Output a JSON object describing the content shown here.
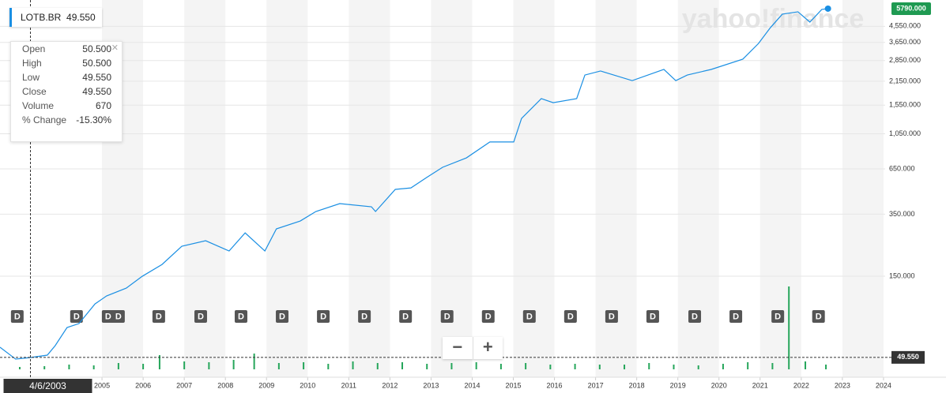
{
  "chart_data": {
    "type": "line",
    "ticker": "LOTB.BR",
    "ticker_price": "49.550",
    "watermark": "yahoo!finance",
    "zoom_buttons": [
      "−",
      "+"
    ],
    "log_scale": true,
    "grid": true,
    "x": [
      2002.52,
      2002.9,
      2003.25,
      2003.67,
      2003.86,
      2004.15,
      2004.44,
      2004.83,
      2005.11,
      2005.59,
      2005.98,
      2006.46,
      2006.94,
      2007.52,
      2008.09,
      2008.48,
      2008.96,
      2009.24,
      2009.82,
      2010.2,
      2010.78,
      2011.55,
      2011.65,
      2012.13,
      2012.51,
      2012.89,
      2013.28,
      2013.86,
      2014.43,
      2015.01,
      2015.2,
      2015.68,
      2015.97,
      2016.54,
      2016.74,
      2017.12,
      2017.89,
      2018.66,
      2018.95,
      2019.23,
      2019.81,
      2020.58,
      2020.96,
      2021.25,
      2021.54,
      2021.92,
      2022.21,
      2022.5,
      2022.65
    ],
    "series": [
      {
        "name": "LOTB.BR",
        "color": "#1a8fe3",
        "values": [
          56.9,
          48.4,
          49.4,
          51.1,
          58.1,
          74.5,
          78.6,
          102.8,
          114.6,
          127.6,
          150,
          176.2,
          225.9,
          243.6,
          211.7,
          271.1,
          211.7,
          286.4,
          319,
          363,
          404.4,
          387.3,
          363,
          491,
          501,
          577,
          664,
          755,
          938,
          938,
          1294,
          1695,
          1604,
          1695,
          2339,
          2472,
          2168,
          2525,
          2168,
          2339,
          2525,
          2905,
          3598,
          4467,
          5370,
          5546,
          4819,
          5728,
          5790
        ]
      }
    ],
    "xlim": [
      2002.52,
      2024.04
    ],
    "xticks": [
      2005,
      2006,
      2007,
      2008,
      2009,
      2010,
      2011,
      2012,
      2013,
      2014,
      2015,
      2016,
      2017,
      2018,
      2019,
      2020,
      2021,
      2022,
      2023,
      2024
    ],
    "ylim": [
      41.2,
      6516
    ],
    "yticks": [
      {
        "value": 150,
        "label": "150.000"
      },
      {
        "value": 350,
        "label": "350.000"
      },
      {
        "value": 650,
        "label": "650.000"
      },
      {
        "value": 1050,
        "label": "1,050.000"
      },
      {
        "value": 1550,
        "label": "1,550.000"
      },
      {
        "value": 2150,
        "label": "2,150.000"
      },
      {
        "value": 2850,
        "label": "2,850.000"
      },
      {
        "value": 3650,
        "label": "3,650.000"
      },
      {
        "value": 4550,
        "label": "4,550.000"
      }
    ],
    "last_price": {
      "value": 5790,
      "label": "5790.000",
      "color": "#1f9a52"
    },
    "crosshair": {
      "x": 2003.26,
      "date_label": "4/6/2003",
      "value": 49.55,
      "value_label": "49.550"
    },
    "tooltip": [
      {
        "label": "Open",
        "value": "50.500"
      },
      {
        "label": "High",
        "value": "50.500"
      },
      {
        "label": "Low",
        "value": "49.550"
      },
      {
        "label": "Close",
        "value": "49.550"
      },
      {
        "label": "Volume",
        "value": "670"
      },
      {
        "label": "% Change",
        "value": "-15.30%"
      }
    ],
    "dividends": {
      "label": "D",
      "x": [
        2002.94,
        2004.38,
        2005.15,
        2005.4,
        2006.38,
        2007.4,
        2008.38,
        2009.38,
        2010.38,
        2011.38,
        2012.38,
        2013.39,
        2014.39,
        2015.39,
        2016.39,
        2017.39,
        2018.39,
        2019.41,
        2020.41,
        2021.43,
        2022.42
      ]
    },
    "volume": {
      "color": "#26a65b",
      "x": [
        2003.0,
        2003.6,
        2004.2,
        2004.8,
        2005.4,
        2006.0,
        2006.4,
        2007.0,
        2007.6,
        2008.2,
        2008.7,
        2009.3,
        2009.9,
        2010.5,
        2011.1,
        2011.7,
        2012.3,
        2012.9,
        2013.5,
        2014.1,
        2014.7,
        2015.3,
        2015.9,
        2016.5,
        2017.1,
        2017.7,
        2018.3,
        2018.9,
        2019.5,
        2020.1,
        2020.7,
        2021.3,
        2021.7,
        2022.1,
        2022.6
      ],
      "values": [
        3,
        4,
        6,
        5,
        8,
        7,
        18,
        10,
        9,
        12,
        20,
        8,
        9,
        7,
        10,
        8,
        9,
        7,
        8,
        9,
        7,
        8,
        6,
        7,
        6,
        6,
        8,
        6,
        5,
        7,
        9,
        8,
        105,
        10,
        6
      ]
    }
  }
}
